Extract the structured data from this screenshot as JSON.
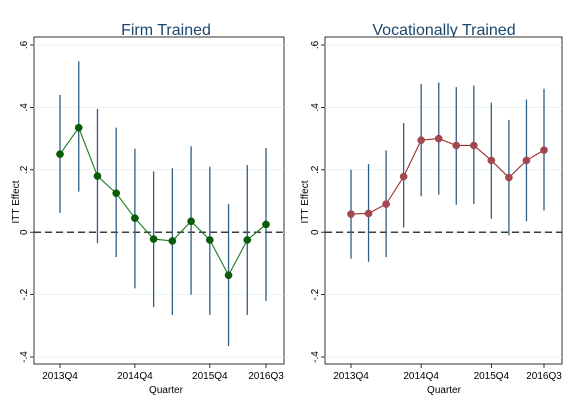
{
  "chart_data": [
    {
      "type": "line",
      "title": "Firm Trained",
      "xlabel": "Quarter",
      "ylabel": "ITT Effect",
      "ylim": [
        -0.4,
        0.6
      ],
      "yticks": [
        -0.4,
        -0.2,
        0,
        0.2,
        0.4,
        0.6
      ],
      "ytick_labels": [
        "-.4",
        "-.2",
        "0",
        ".2",
        ".4",
        ".6"
      ],
      "x_range": [
        "2013Q4",
        "2016Q3"
      ],
      "xtick_labels": [
        "2013Q4",
        "2014Q4",
        "2015Q4",
        "2016Q3"
      ],
      "reference_line": {
        "y": 0,
        "style": "dashed"
      },
      "grid": "horizontal",
      "legend": "none",
      "colors": {
        "line": "#1d7a1d",
        "marker": "#0a5c0a",
        "ci": "#2e5f87"
      },
      "x": [
        "2013Q4",
        "2014Q1",
        "2014Q2",
        "2014Q3",
        "2014Q4",
        "2015Q1",
        "2015Q2",
        "2015Q3",
        "2015Q4",
        "2016Q1",
        "2016Q2",
        "2016Q3"
      ],
      "point": [
        0.25,
        0.335,
        0.18,
        0.125,
        0.045,
        -0.022,
        -0.028,
        0.035,
        -0.025,
        -0.138,
        -0.025,
        0.025
      ],
      "ci_low": [
        0.062,
        0.13,
        -0.035,
        -0.08,
        -0.18,
        -0.24,
        -0.265,
        -0.2,
        -0.265,
        -0.365,
        -0.265,
        -0.22
      ],
      "ci_high": [
        0.44,
        0.548,
        0.395,
        0.335,
        0.268,
        0.195,
        0.205,
        0.275,
        0.21,
        0.09,
        0.215,
        0.27
      ]
    },
    {
      "type": "line",
      "title": "Vocationally Trained",
      "xlabel": "Quarter",
      "ylabel": "ITT Effect",
      "ylim": [
        -0.4,
        0.6
      ],
      "yticks": [
        -0.4,
        -0.2,
        0,
        0.2,
        0.4,
        0.6
      ],
      "ytick_labels": [
        "-.4",
        "-.2",
        "0",
        ".2",
        ".4",
        ".6"
      ],
      "x_range": [
        "2013Q4",
        "2016Q3"
      ],
      "xtick_labels": [
        "2013Q4",
        "2014Q4",
        "2015Q4",
        "2016Q3"
      ],
      "reference_line": {
        "y": 0,
        "style": "dashed"
      },
      "grid": "horizontal",
      "legend": "none",
      "colors": {
        "line": "#9b2d2d",
        "marker": "#a24850",
        "ci": "#2e5f87"
      },
      "x": [
        "2013Q4",
        "2014Q1",
        "2014Q2",
        "2014Q3",
        "2014Q4",
        "2015Q1",
        "2015Q2",
        "2015Q3",
        "2015Q4",
        "2016Q1",
        "2016Q2",
        "2016Q3"
      ],
      "point": [
        0.058,
        0.06,
        0.09,
        0.178,
        0.295,
        0.3,
        0.278,
        0.278,
        0.23,
        0.175,
        0.23,
        0.263
      ],
      "ci_low": [
        -0.085,
        -0.095,
        -0.08,
        0.015,
        0.115,
        0.12,
        0.088,
        0.09,
        0.043,
        -0.01,
        0.035,
        0.07
      ],
      "ci_high": [
        0.2,
        0.218,
        0.262,
        0.35,
        0.475,
        0.48,
        0.465,
        0.47,
        0.415,
        0.36,
        0.425,
        0.46
      ]
    }
  ]
}
